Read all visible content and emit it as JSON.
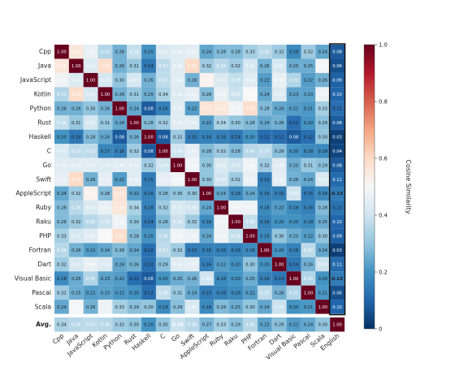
{
  "chart_data": {
    "type": "heatmap",
    "title": "",
    "xlabel": "",
    "ylabel": "",
    "colorbar": {
      "label": "Cosine Similarity",
      "range": [
        0,
        1
      ],
      "ticks": [
        "0",
        "0.2",
        "0.4",
        "0.6",
        "0.8",
        "1.0"
      ],
      "colormap": "RdBu_r"
    },
    "row_labels": [
      "Cpp",
      "Java",
      "JavaScript",
      "Kotlin",
      "Python",
      "Rust",
      "Haskell",
      "C",
      "Go",
      "Swift",
      "AppleScript",
      "Ruby",
      "Raku",
      "PHP",
      "Fortran",
      "Dart",
      "Visual Basic",
      "Pascal",
      "Scala"
    ],
    "col_labels": [
      "Cpp",
      "Java",
      "JavaScript",
      "Kotlin",
      "Python",
      "Rust",
      "Haskell",
      "C",
      "Go",
      "Swift",
      "AppleScript",
      "Ruby",
      "Raku",
      "PHP",
      "Fortran",
      "Dart",
      "Visual Basic",
      "Pascal",
      "Scala",
      "English"
    ],
    "matrix": [
      [
        1.0,
        0.56,
        0.46,
        0.35,
        0.26,
        0.38,
        0.2,
        0.42,
        0.44,
        0.45,
        0.24,
        0.28,
        0.28,
        0.33,
        0.36,
        0.32,
        0.18,
        0.32,
        0.24,
        0.08
      ],
      [
        0.56,
        1.0,
        0.43,
        0.59,
        0.26,
        0.31,
        0.14,
        0.37,
        0.44,
        0.6,
        0.32,
        0.36,
        0.32,
        0.41,
        0.26,
        0.41,
        0.25,
        0.25,
        0.49,
        0.06
      ],
      [
        0.48,
        0.43,
        1.0,
        0.41,
        0.3,
        0.41,
        0.26,
        0.37,
        0.44,
        0.26,
        0.52,
        0.42,
        0.38,
        0.44,
        0.22,
        0.46,
        0.35,
        0.22,
        0.26,
        0.09
      ],
      [
        0.35,
        0.59,
        0.41,
        1.0,
        0.26,
        0.31,
        0.25,
        0.34,
        0.43,
        0.45,
        0.28,
        0.46,
        0.39,
        0.5,
        0.24,
        0.43,
        0.23,
        0.23,
        0.47,
        0.1
      ],
      [
        0.26,
        0.26,
        0.3,
        0.26,
        1.0,
        0.24,
        0.08,
        0.16,
        0.44,
        0.22,
        0.57,
        0.56,
        0.48,
        0.59,
        0.28,
        0.24,
        0.22,
        0.21,
        0.33,
        0.12
      ],
      [
        0.38,
        0.31,
        0.41,
        0.31,
        0.24,
        1.0,
        0.28,
        0.32,
        0.44,
        0.44,
        0.22,
        0.34,
        0.3,
        0.28,
        0.24,
        0.26,
        0.12,
        0.2,
        0.29,
        0.08
      ],
      [
        0.2,
        0.14,
        0.28,
        0.24,
        0.08,
        0.26,
        1.0,
        0.08,
        0.32,
        0.15,
        0.16,
        0.16,
        0.14,
        0.2,
        0.12,
        0.12,
        0.08,
        0.12,
        0.3,
        0.03
      ],
      [
        0.42,
        0.37,
        0.37,
        0.17,
        0.16,
        0.32,
        0.08,
        1.0,
        0.4,
        0.45,
        0.28,
        0.32,
        0.28,
        0.36,
        0.37,
        0.29,
        0.2,
        0.18,
        0.18,
        0.04
      ],
      [
        0.44,
        0.44,
        0.44,
        0.43,
        0.44,
        0.44,
        0.32,
        0.4,
        1.0,
        0.48,
        0.3,
        0.42,
        0.39,
        0.48,
        0.32,
        0.44,
        0.25,
        0.31,
        0.29,
        0.08
      ],
      [
        0.45,
        0.6,
        0.26,
        0.45,
        0.22,
        0.44,
        0.15,
        0.45,
        0.48,
        1.0,
        0.3,
        0.4,
        0.32,
        0.46,
        0.15,
        0.45,
        0.26,
        0.24,
        0.42,
        0.11
      ],
      [
        0.24,
        0.32,
        0.52,
        0.28,
        0.57,
        0.22,
        0.16,
        0.28,
        0.3,
        0.3,
        1.0,
        0.24,
        0.18,
        0.24,
        0.16,
        0.16,
        0.4,
        0.15,
        0.18,
        0.15
      ],
      [
        0.28,
        0.36,
        0.42,
        0.46,
        0.56,
        0.34,
        0.16,
        0.32,
        0.42,
        0.4,
        0.24,
        1.0,
        0.48,
        0.47,
        0.18,
        0.22,
        0.18,
        0.16,
        0.28,
        0.13
      ],
      [
        0.28,
        0.32,
        0.36,
        0.39,
        0.48,
        0.3,
        0.14,
        0.28,
        0.39,
        0.32,
        0.18,
        0.48,
        1.0,
        0.38,
        0.16,
        0.2,
        0.2,
        0.18,
        0.25,
        0.1
      ],
      [
        0.33,
        0.41,
        0.44,
        0.5,
        0.59,
        0.28,
        0.2,
        0.36,
        0.48,
        0.46,
        0.24,
        0.47,
        0.38,
        1.0,
        0.18,
        0.3,
        0.25,
        0.22,
        0.3,
        0.09
      ],
      [
        0.36,
        0.26,
        0.22,
        0.24,
        0.28,
        0.24,
        0.12,
        0.37,
        0.32,
        0.15,
        0.16,
        0.16,
        0.16,
        0.18,
        1.0,
        0.2,
        0.16,
        0.37,
        0.24,
        0.03
      ],
      [
        0.32,
        0.41,
        0.46,
        0.43,
        0.24,
        0.26,
        0.12,
        0.29,
        0.44,
        0.45,
        0.16,
        0.22,
        0.2,
        0.3,
        0.2,
        1.0,
        0.14,
        0.26,
        0.39,
        0.11
      ],
      [
        0.18,
        0.25,
        0.35,
        0.23,
        0.22,
        0.12,
        0.08,
        0.2,
        0.25,
        0.26,
        0.4,
        0.18,
        0.2,
        0.25,
        0.16,
        0.14,
        1.0,
        0.35,
        0.2,
        0.15
      ],
      [
        0.32,
        0.25,
        0.22,
        0.23,
        0.21,
        0.2,
        0.12,
        0.38,
        0.31,
        0.24,
        0.15,
        0.16,
        0.18,
        0.22,
        0.37,
        0.26,
        0.35,
        1.0,
        0.21,
        0.06
      ],
      [
        0.24,
        0.49,
        0.26,
        0.47,
        0.33,
        0.29,
        0.3,
        0.18,
        0.29,
        0.42,
        0.18,
        0.28,
        0.25,
        0.3,
        0.24,
        0.39,
        0.2,
        0.21,
        1.0,
        0.1
      ]
    ],
    "avg_row_label": "Avg.",
    "avg_row": [
      0.34,
      0.36,
      0.37,
      0.36,
      0.32,
      0.3,
      0.2,
      0.3,
      0.39,
      0.36,
      0.27,
      0.33,
      0.29,
      0.36,
      0.23,
      0.29,
      0.22,
      0.24,
      0.3,
      1.0
    ],
    "emphasized_cells": [
      {
        "row": "AppleScript",
        "col": "English"
      },
      {
        "row": "Visual Basic",
        "col": "English"
      },
      {
        "row": "Avg.",
        "col": "Go"
      }
    ],
    "highlighted_column": "English",
    "grid": false,
    "legend": "colorbar-right"
  }
}
